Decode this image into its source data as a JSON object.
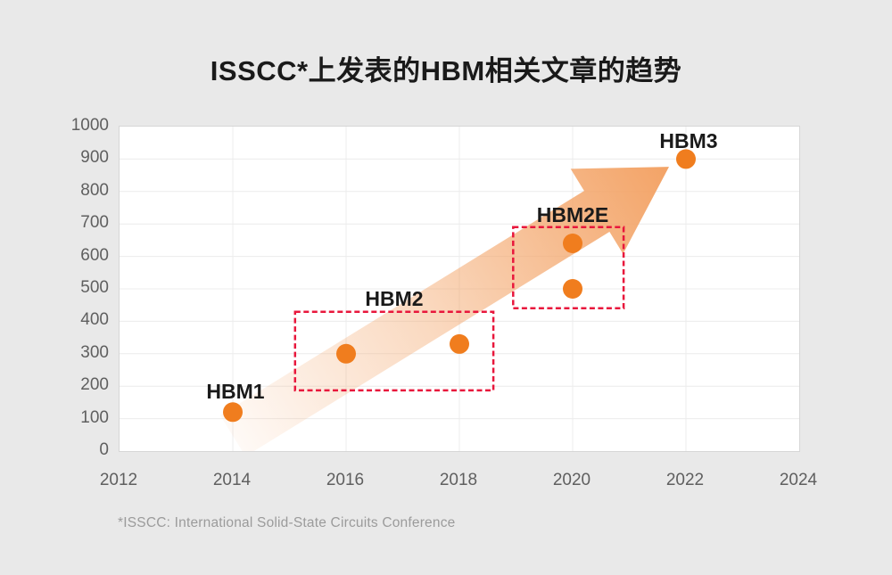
{
  "title": "ISSCC*上发表的HBM相关文章的趋势",
  "footnote": "*ISSCC: International Solid-State Circuits Conference",
  "colors": {
    "background": "#e9e9e9",
    "plot_background": "#ffffff",
    "plot_border": "#d6d6d6",
    "grid": "#ececec",
    "dot": "#f07d1e",
    "arrow": "#f3a366",
    "group_box": "#e8173c",
    "title_text": "#1a1a1a",
    "annotation_text": "#1a1a1a",
    "axis_text": "#5f5f5f",
    "footnote_text": "#9b9b9b"
  },
  "chart_data": {
    "type": "scatter",
    "title": "ISSCC*上发表的HBM相关文章的趋势",
    "xlabel": "",
    "ylabel": "",
    "xlim": [
      2012,
      2024
    ],
    "ylim": [
      0,
      1000
    ],
    "x_ticks": [
      2012,
      2014,
      2016,
      2018,
      2020,
      2022,
      2024
    ],
    "y_ticks": [
      0,
      100,
      200,
      300,
      400,
      500,
      600,
      700,
      800,
      900,
      1000
    ],
    "grid": true,
    "legend": false,
    "points": [
      {
        "x": 2014,
        "y": 120,
        "generation": "HBM1"
      },
      {
        "x": 2016,
        "y": 300,
        "generation": "HBM2"
      },
      {
        "x": 2018,
        "y": 330,
        "generation": "HBM2"
      },
      {
        "x": 2020,
        "y": 640,
        "generation": "HBM2E"
      },
      {
        "x": 2020,
        "y": 500,
        "generation": "HBM2E"
      },
      {
        "x": 2022,
        "y": 900,
        "generation": "HBM3"
      }
    ],
    "annotations": [
      {
        "text": "HBM1",
        "x": 2014.05,
        "y": 185
      },
      {
        "text": "HBM2",
        "x": 2016.85,
        "y": 470
      },
      {
        "text": "HBM2E",
        "x": 2020.0,
        "y": 728
      },
      {
        "text": "HBM3",
        "x": 2022.05,
        "y": 956
      }
    ],
    "group_boxes": [
      {
        "label": "HBM2",
        "x1": 2015.1,
        "x2": 2018.6,
        "y1": 187,
        "y2": 429
      },
      {
        "label": "HBM2E",
        "x1": 2018.95,
        "x2": 2020.9,
        "y1": 440,
        "y2": 690
      }
    ],
    "trend_arrow": {
      "from_x": 2014.0,
      "from_y": 47,
      "to_x": 2021.7,
      "to_y": 876
    }
  }
}
